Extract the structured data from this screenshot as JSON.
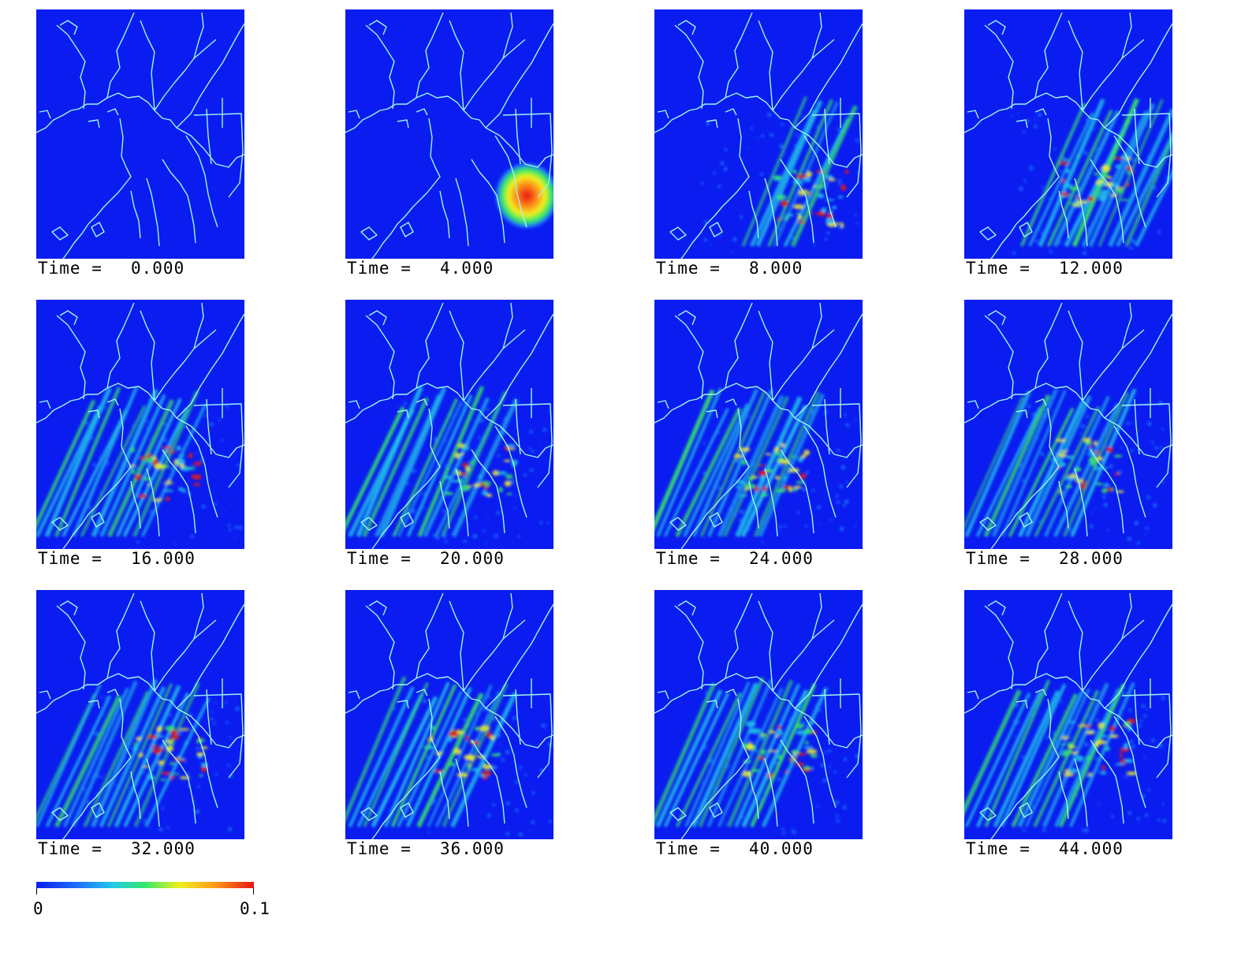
{
  "panels": [
    {
      "time_label": "Time =",
      "time_value": "0.000"
    },
    {
      "time_label": "Time =",
      "time_value": "4.000"
    },
    {
      "time_label": "Time =",
      "time_value": "8.000"
    },
    {
      "time_label": "Time =",
      "time_value": "12.000"
    },
    {
      "time_label": "Time =",
      "time_value": "16.000"
    },
    {
      "time_label": "Time =",
      "time_value": "20.000"
    },
    {
      "time_label": "Time =",
      "time_value": "24.000"
    },
    {
      "time_label": "Time =",
      "time_value": "28.000"
    },
    {
      "time_label": "Time =",
      "time_value": "32.000"
    },
    {
      "time_label": "Time =",
      "time_value": "36.000"
    },
    {
      "time_label": "Time =",
      "time_value": "40.000"
    },
    {
      "time_label": "Time =",
      "time_value": "44.000"
    }
  ],
  "colorbar": {
    "min_label": "0",
    "max_label": "0.1",
    "colormap": "jet",
    "colors": [
      "#0a1cf0",
      "#1e6cff",
      "#22c8e8",
      "#34e86a",
      "#f0f01c",
      "#ff9a1a",
      "#e81414"
    ]
  },
  "colors": {
    "background": "#0a1cf0",
    "coastline": "#9ff5ee"
  }
}
